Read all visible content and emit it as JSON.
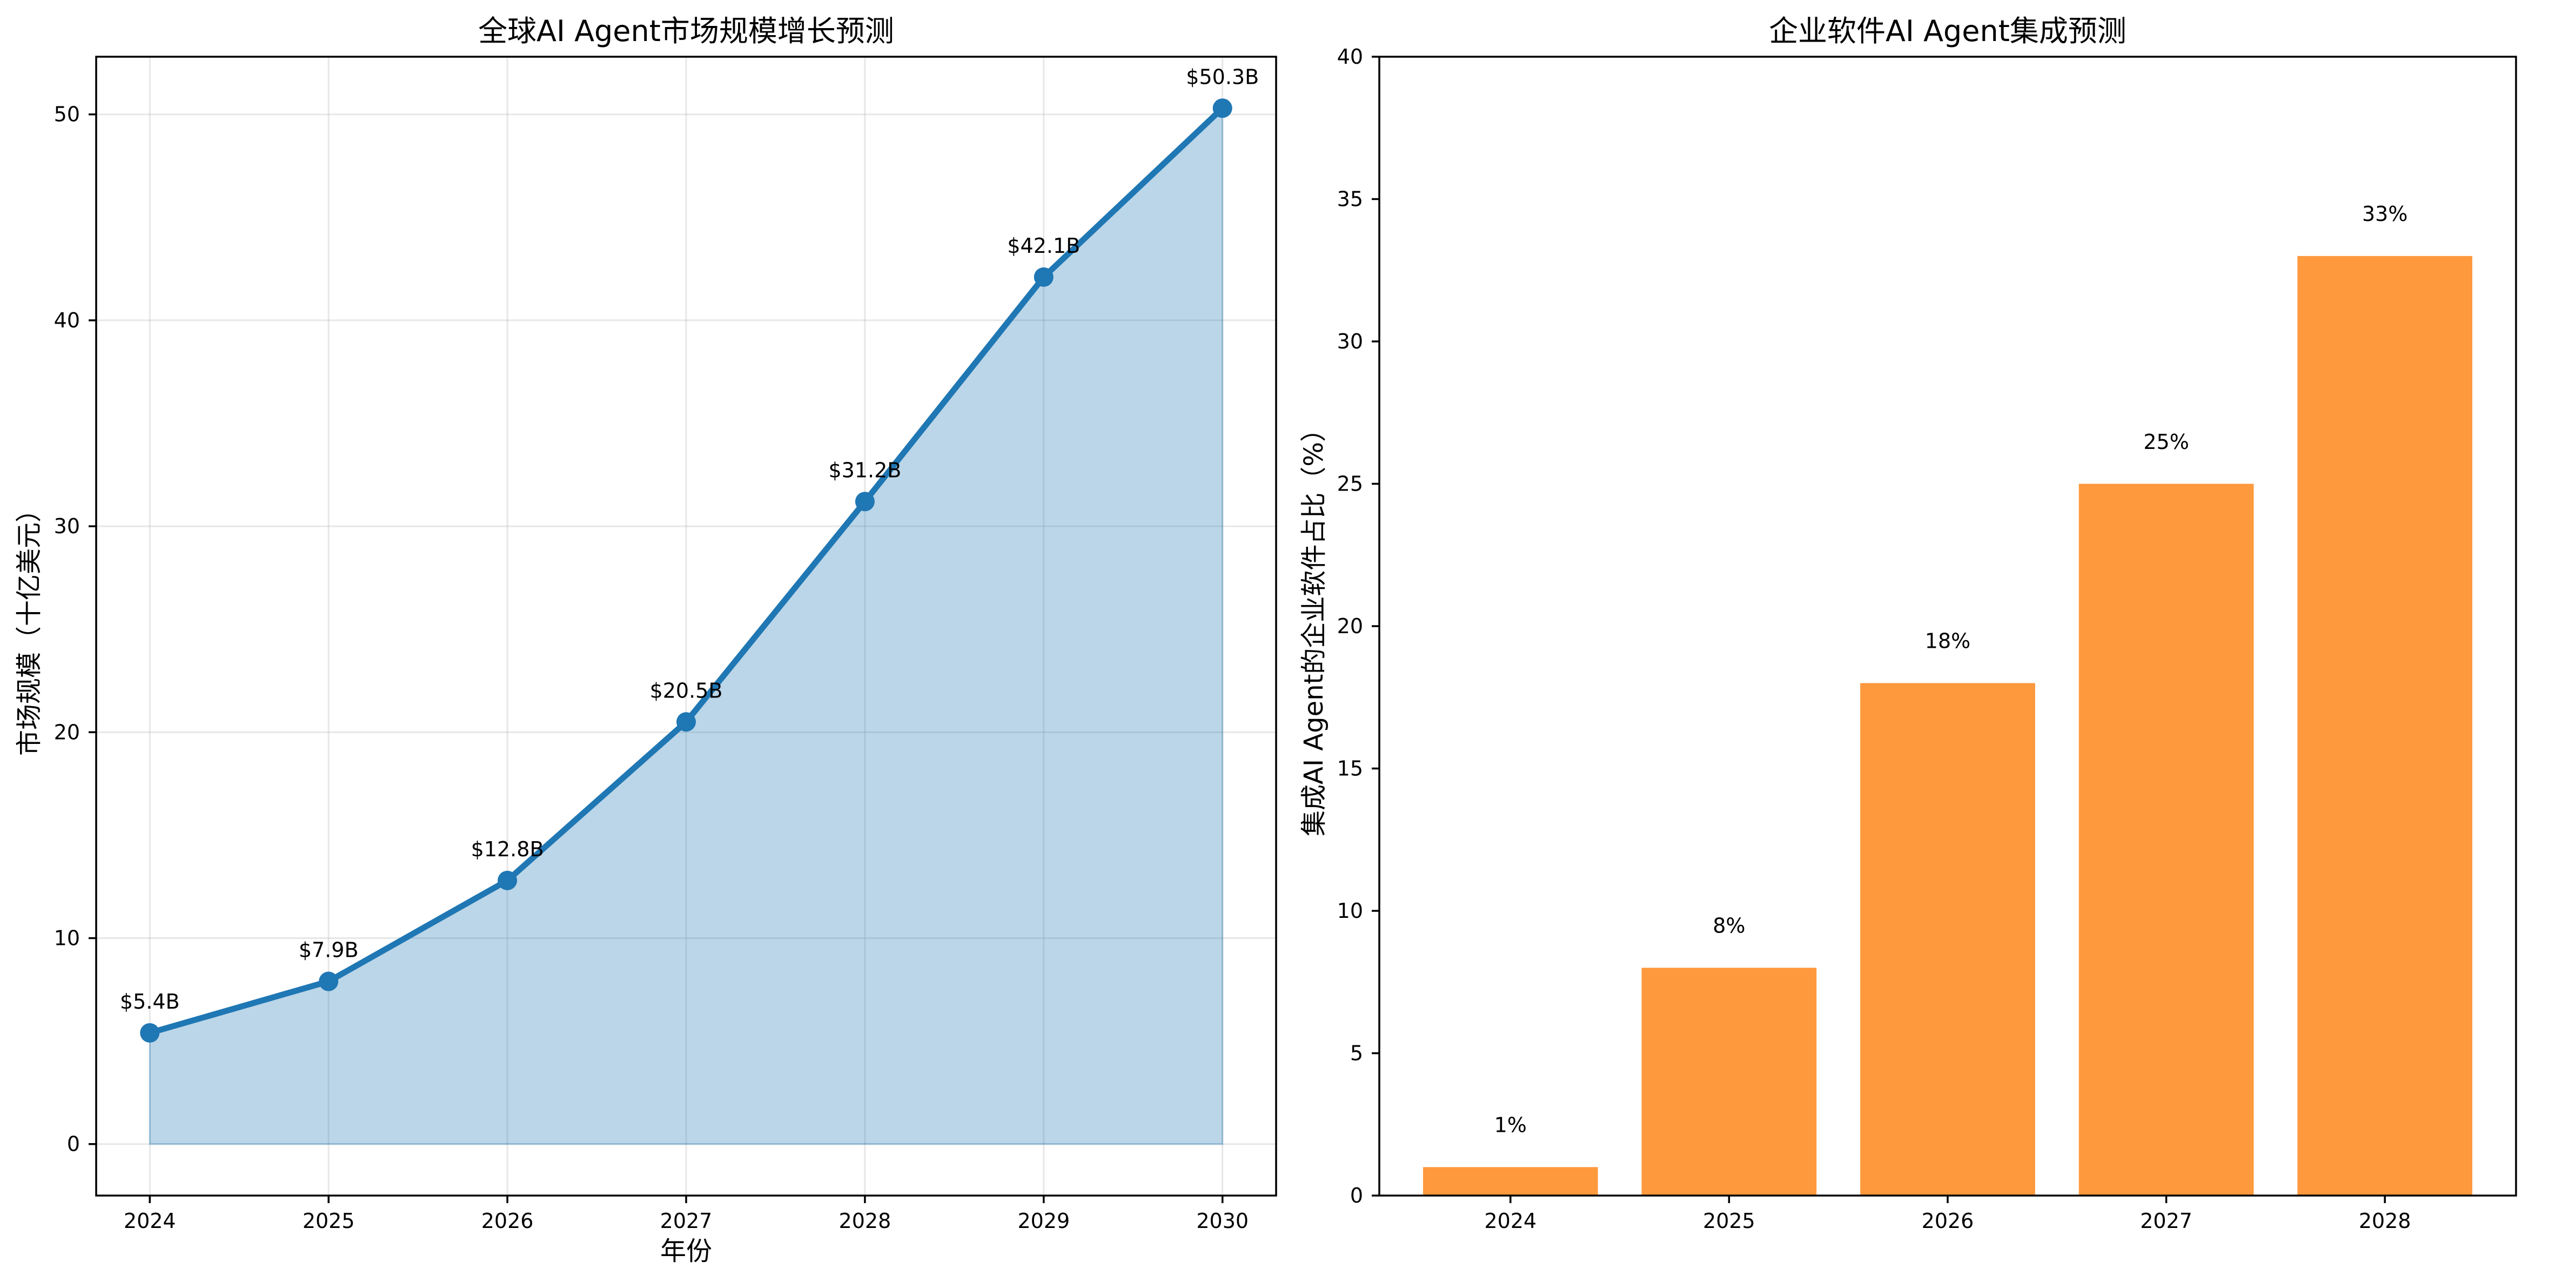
{
  "chart_data": [
    {
      "type": "area",
      "title": "全球AI Agent市场规模增长预测",
      "xlabel": "年份",
      "ylabel": "市场规模（十亿美元）",
      "x": [
        2024,
        2025,
        2026,
        2027,
        2028,
        2029,
        2030
      ],
      "values": [
        5.4,
        7.9,
        12.8,
        20.5,
        31.2,
        42.1,
        50.3
      ],
      "data_labels": [
        "$5.4B",
        "$7.9B",
        "$12.8B",
        "$20.5B",
        "$31.2B",
        "$42.1B",
        "$50.3B"
      ],
      "xlim": [
        2023.7,
        2030.3
      ],
      "ylim": [
        -2.5,
        52.8
      ],
      "yticks": [
        0,
        10,
        20,
        30,
        40,
        50
      ],
      "xticks": [
        2024,
        2025,
        2026,
        2027,
        2028,
        2029,
        2030
      ],
      "grid": true,
      "colors": {
        "line": "#1f77b4",
        "fill": "#1f77b4"
      }
    },
    {
      "type": "bar",
      "title": "企业软件AI Agent集成预测",
      "xlabel": "",
      "ylabel": "集成AI Agent的企业软件占比（%）",
      "categories": [
        "2024",
        "2025",
        "2026",
        "2027",
        "2028"
      ],
      "values": [
        1,
        8,
        18,
        25,
        33
      ],
      "data_labels": [
        "1%",
        "8%",
        "18%",
        "25%",
        "33%"
      ],
      "ylim": [
        0,
        40
      ],
      "yticks": [
        0,
        5,
        10,
        15,
        20,
        25,
        30,
        35,
        40
      ],
      "grid": false,
      "colors": {
        "bar": "#ff993d"
      }
    }
  ]
}
